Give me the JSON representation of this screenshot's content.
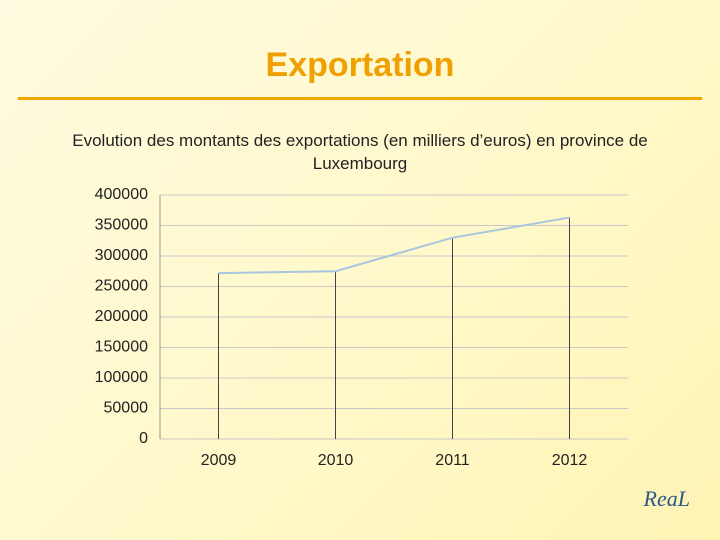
{
  "chart_data": {
    "type": "line",
    "title": "Exportation",
    "subtitle": "Evolution des montants des exportations (en milliers d’euros) en province de Luxembourg",
    "categories": [
      "2009",
      "2010",
      "2011",
      "2012"
    ],
    "values": [
      272000,
      275000,
      330000,
      363000
    ],
    "color": "#a8c6df",
    "ylim": [
      0,
      400000
    ],
    "yticks": [
      0,
      50000,
      100000,
      150000,
      200000,
      250000,
      300000,
      350000,
      400000
    ],
    "grid": true,
    "drop_lines": true
  },
  "logo": "ReaL"
}
